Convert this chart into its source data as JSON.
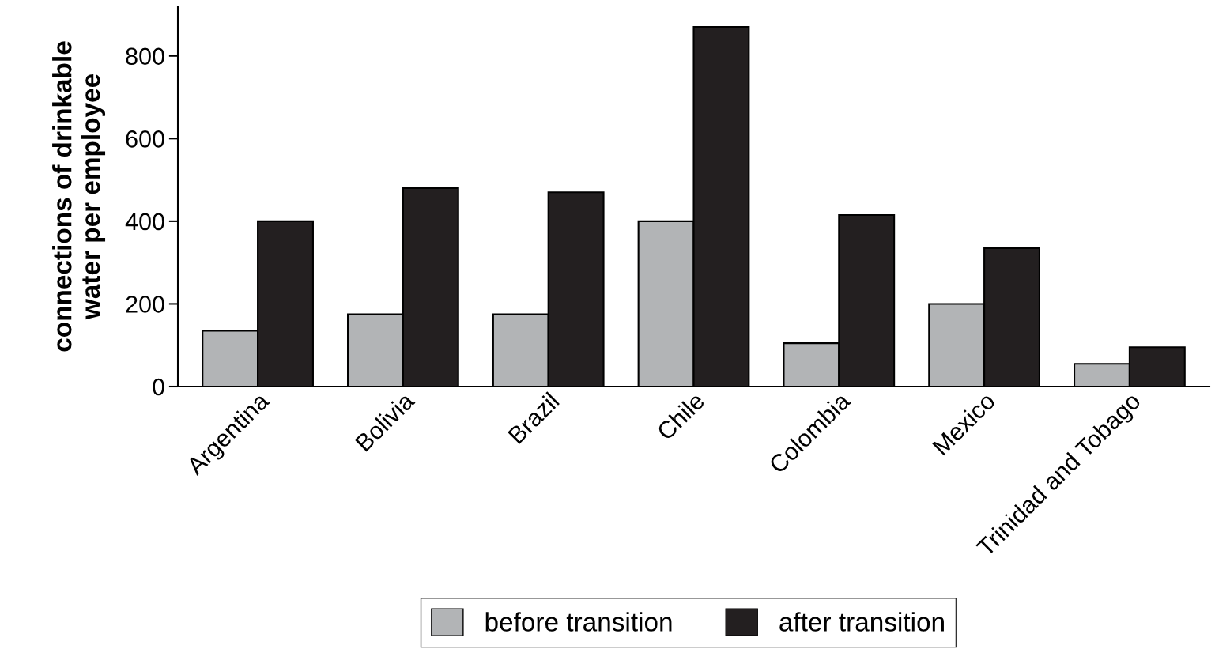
{
  "chart_data": {
    "type": "bar",
    "ylabel": "connections of drinkable\nwater per employee",
    "categories": [
      "Argentina",
      "Bolivia",
      "Brazil",
      "Chile",
      "Colombia",
      "Mexico",
      "Trinidad and Tobago"
    ],
    "series": [
      {
        "name": "before transition",
        "color": "#b2b4b6",
        "values": [
          135,
          175,
          175,
          400,
          105,
          200,
          55
        ]
      },
      {
        "name": "after transition",
        "color": "#231f20",
        "values": [
          400,
          480,
          470,
          870,
          415,
          335,
          95
        ]
      }
    ],
    "ylim": [
      0,
      920
    ],
    "yticks": [
      0,
      200,
      400,
      600,
      800
    ],
    "grid": false,
    "legend": "bottom"
  }
}
